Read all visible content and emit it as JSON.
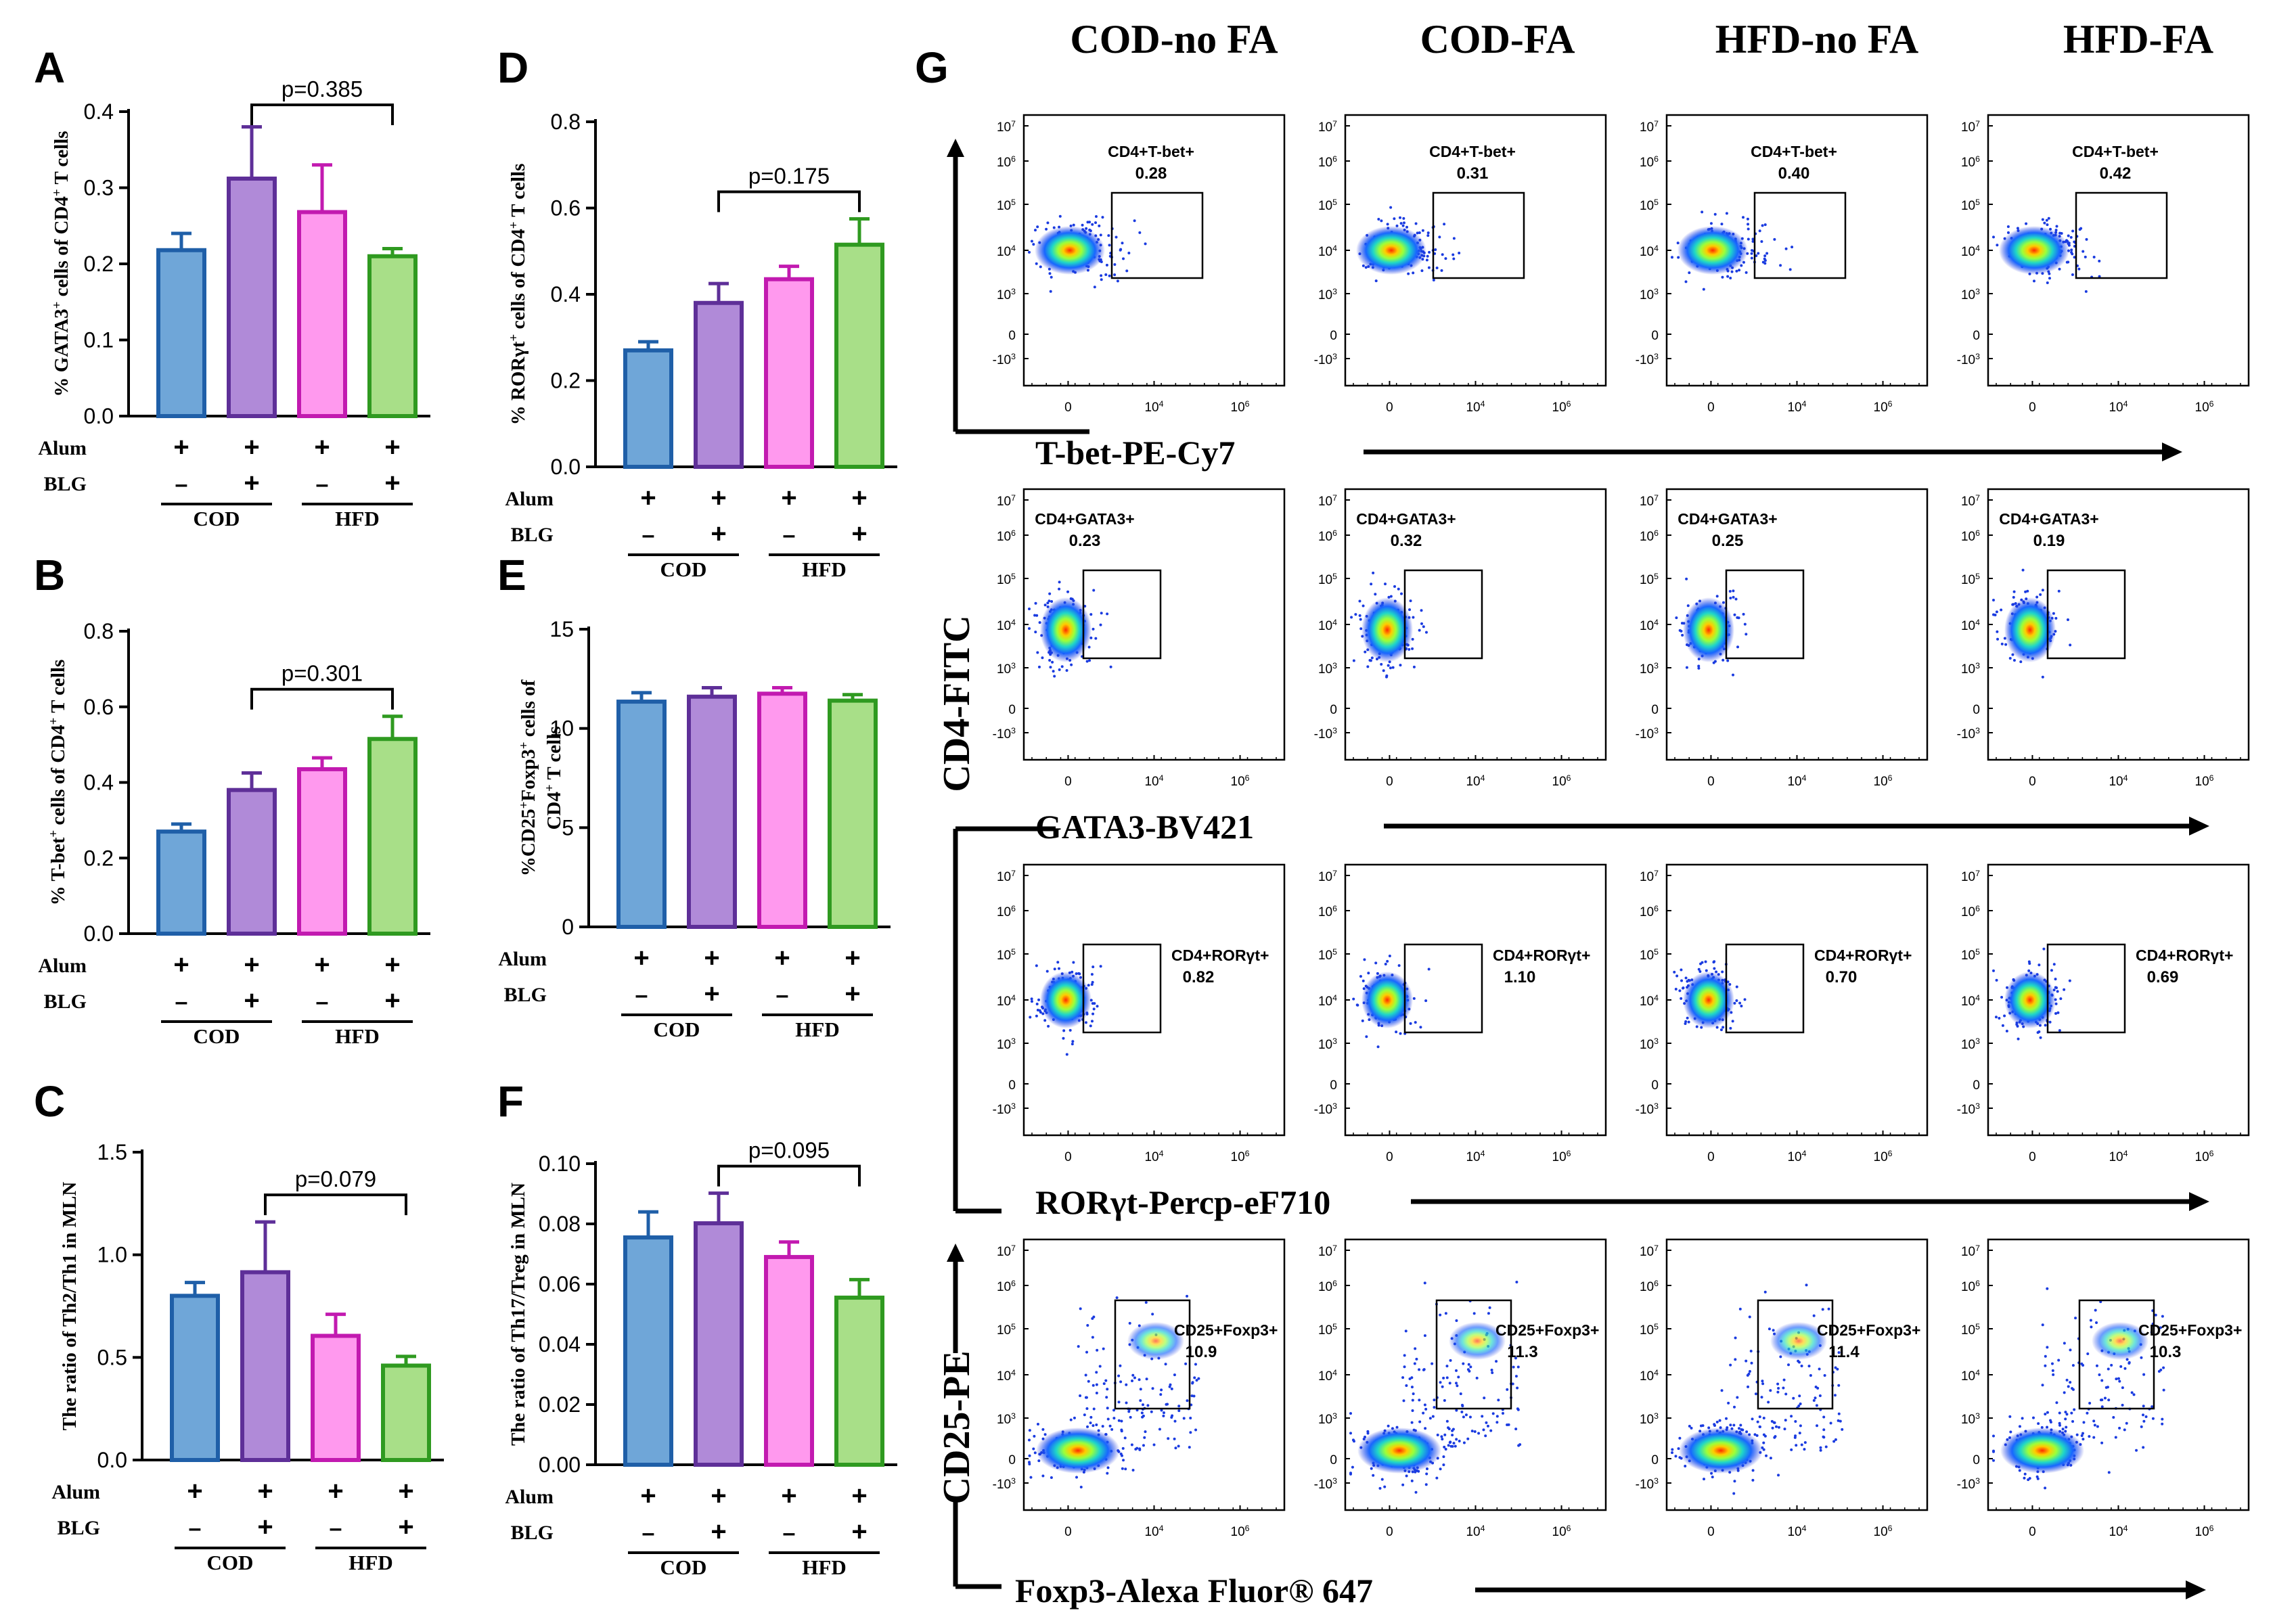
{
  "colors": {
    "cod_alum": {
      "fill": "#6fa6d8",
      "edge": "#1f5fa8"
    },
    "cod_blg": {
      "fill": "#b08ad8",
      "edge": "#5e2f98"
    },
    "hfd_alum": {
      "fill": "#ff99ee",
      "edge": "#c21ab0"
    },
    "hfd_blg": {
      "fill": "#a8df88",
      "edge": "#2f9a20"
    }
  },
  "xlabels": {
    "alum": "Alum",
    "blg": "BLG",
    "plus": "+",
    "minus": "–",
    "cod": "COD",
    "hfd": "HFD"
  },
  "chart_data": [
    {
      "type": "bar",
      "panel": "A",
      "ylabel": "% GATA3+ cells of CD4+ T cells",
      "ylim": [
        0,
        0.4
      ],
      "yticks": [
        "0.0",
        "0.1",
        "0.2",
        "0.3",
        "0.4"
      ],
      "categories": [
        "COD Alum",
        "COD Alum+BLG",
        "HFD Alum",
        "HFD Alum+BLG"
      ],
      "values": [
        0.218,
        0.312,
        0.268,
        0.21
      ],
      "errors": [
        0.022,
        0.068,
        0.062,
        0.01
      ],
      "annotation": {
        "text": "p=0.385",
        "from": 1,
        "to": 3
      }
    },
    {
      "type": "bar",
      "panel": "B",
      "ylabel": "% T-bet+ cells of CD4+ T cells",
      "ylim": [
        0,
        0.8
      ],
      "yticks": [
        "0.0",
        "0.2",
        "0.4",
        "0.6",
        "0.8"
      ],
      "categories": [
        "COD Alum",
        "COD Alum+BLG",
        "HFD Alum",
        "HFD Alum+BLG"
      ],
      "values": [
        0.27,
        0.38,
        0.435,
        0.515
      ],
      "errors": [
        0.02,
        0.045,
        0.03,
        0.06
      ],
      "annotation": {
        "text": "p=0.301",
        "from": 1,
        "to": 3
      }
    },
    {
      "type": "bar",
      "panel": "C",
      "ylabel": "The ratio of Th2/Th1 in MLN",
      "ylim": [
        0,
        1.5
      ],
      "yticks": [
        "0.0",
        "0.5",
        "1.0",
        "1.5"
      ],
      "categories": [
        "COD Alum",
        "COD Alum+BLG",
        "HFD Alum",
        "HFD Alum+BLG"
      ],
      "values": [
        0.8,
        0.915,
        0.605,
        0.46
      ],
      "errors": [
        0.065,
        0.245,
        0.105,
        0.045
      ],
      "annotation": {
        "text": "p=0.079",
        "from": 1,
        "to": 3
      }
    },
    {
      "type": "bar",
      "panel": "D",
      "ylabel": "% RORγt+ cells of CD4+ T cells",
      "ylim": [
        0,
        0.8
      ],
      "yticks": [
        "0.0",
        "0.2",
        "0.4",
        "0.6",
        "0.8"
      ],
      "categories": [
        "COD Alum",
        "COD Alum+BLG",
        "HFD Alum",
        "HFD Alum+BLG"
      ],
      "values": [
        0.27,
        0.38,
        0.435,
        0.515
      ],
      "errors": [
        0.02,
        0.045,
        0.03,
        0.06
      ],
      "annotation": {
        "text": "p=0.175",
        "from": 1,
        "to": 3
      }
    },
    {
      "type": "bar",
      "panel": "E",
      "ylabel": "%CD25+Foxp3+ cells of CD4+ T cells",
      "ylim": [
        0,
        15
      ],
      "yticks": [
        "0",
        "5",
        "10",
        "15"
      ],
      "categories": [
        "COD Alum",
        "COD Alum+BLG",
        "HFD Alum",
        "HFD Alum+BLG"
      ],
      "values": [
        11.35,
        11.6,
        11.75,
        11.4
      ],
      "errors": [
        0.45,
        0.45,
        0.3,
        0.3
      ],
      "annotation": null
    },
    {
      "type": "bar",
      "panel": "F",
      "ylabel": "The ratio of Th17/Treg in MLN",
      "ylim": [
        0,
        0.1
      ],
      "yticks": [
        "0.00",
        "0.02",
        "0.04",
        "0.06",
        "0.08",
        "0.10"
      ],
      "categories": [
        "COD Alum",
        "COD Alum+BLG",
        "HFD Alum",
        "HFD Alum+BLG"
      ],
      "values": [
        0.0755,
        0.0802,
        0.069,
        0.0555
      ],
      "errors": [
        0.0085,
        0.01,
        0.005,
        0.006
      ],
      "annotation": {
        "text": "p=0.095",
        "from": 1,
        "to": 3
      }
    }
  ],
  "flow": {
    "panel": "G",
    "columns": [
      "COD-no FA",
      "COD-FA",
      "HFD-no FA",
      "HFD-FA"
    ],
    "rows": [
      {
        "xaxis": "T-bet-PE-Cy7",
        "gate": "CD4+T-bet+",
        "values": [
          "0.28",
          "0.31",
          "0.40",
          "0.42"
        ]
      },
      {
        "xaxis": "GATA3-BV421",
        "gate": "CD4+GATA3+",
        "values": [
          "0.23",
          "0.32",
          "0.25",
          "0.19"
        ]
      },
      {
        "xaxis": "RORγt-Percp-eF710",
        "gate": "CD4+RORγt+",
        "values": [
          "0.82",
          "1.10",
          "0.70",
          "0.69"
        ]
      },
      {
        "xaxis": "Foxp3-Alexa Fluor® 647",
        "gate": "CD25+Foxp3+",
        "values": [
          "10.9",
          "11.3",
          "11.4",
          "10.3"
        ]
      }
    ],
    "yaxis_upper": "CD4-FITC",
    "yaxis_lower": "CD25-PE",
    "yticks": [
      "10^7",
      "10^6",
      "10^5",
      "10^4",
      "10^3",
      "0",
      "-10^3"
    ],
    "xticks": [
      "0",
      "10^4",
      "10^6"
    ]
  }
}
